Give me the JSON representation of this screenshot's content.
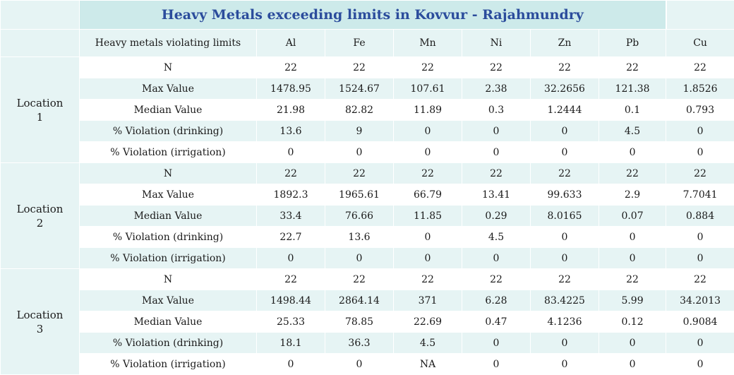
{
  "title": "Heavy Metals exceeding limits in Kovvur - Rajahmundry",
  "header": {
    "label": "Heavy metals violating limits",
    "metals": [
      "Al",
      "Fe",
      "Mn",
      "Ni",
      "Zn",
      "Pb",
      "Cu"
    ]
  },
  "locations": [
    {
      "name_line1": "Location",
      "name_line2": "1",
      "rows": [
        {
          "label": "N",
          "values": [
            "22",
            "22",
            "22",
            "22",
            "22",
            "22",
            "22"
          ]
        },
        {
          "label": "Max Value",
          "values": [
            "1478.95",
            "1524.67",
            "107.61",
            "2.38",
            "32.2656",
            "121.38",
            "1.8526"
          ]
        },
        {
          "label": "Median Value",
          "values": [
            "21.98",
            "82.82",
            "11.89",
            "0.3",
            "1.2444",
            "0.1",
            "0.793"
          ]
        },
        {
          "label": "% Violation (drinking)",
          "values": [
            "13.6",
            "9",
            "0",
            "0",
            "0",
            "4.5",
            "0"
          ]
        },
        {
          "label": "% Violation (irrigation)",
          "values": [
            "0",
            "0",
            "0",
            "0",
            "0",
            "0",
            "0"
          ]
        }
      ]
    },
    {
      "name_line1": "Location",
      "name_line2": "2",
      "rows": [
        {
          "label": "N",
          "values": [
            "22",
            "22",
            "22",
            "22",
            "22",
            "22",
            "22"
          ]
        },
        {
          "label": "Max Value",
          "values": [
            "1892.3",
            "1965.61",
            "66.79",
            "13.41",
            "99.633",
            "2.9",
            "7.7041"
          ]
        },
        {
          "label": "Median Value",
          "values": [
            "33.4",
            "76.66",
            "11.85",
            "0.29",
            "8.0165",
            "0.07",
            "0.884"
          ]
        },
        {
          "label": "% Violation (drinking)",
          "values": [
            "22.7",
            "13.6",
            "0",
            "4.5",
            "0",
            "0",
            "0"
          ]
        },
        {
          "label": "% Violation (irrigation)",
          "values": [
            "0",
            "0",
            "0",
            "0",
            "0",
            "0",
            "0"
          ]
        }
      ]
    },
    {
      "name_line1": "Location",
      "name_line2": "3",
      "rows": [
        {
          "label": "N",
          "values": [
            "22",
            "22",
            "22",
            "22",
            "22",
            "22",
            "22"
          ]
        },
        {
          "label": "Max Value",
          "values": [
            "1498.44",
            "2864.14",
            "371",
            "6.28",
            "83.4225",
            "5.99",
            "34.2013"
          ]
        },
        {
          "label": "Median Value",
          "values": [
            "25.33",
            "78.85",
            "22.69",
            "0.47",
            "4.1236",
            "0.12",
            "0.9084"
          ]
        },
        {
          "label": "% Violation (drinking)",
          "values": [
            "18.1",
            "36.3",
            "4.5",
            "0",
            "0",
            "0",
            "0"
          ]
        },
        {
          "label": "% Violation (irrigation)",
          "values": [
            "0",
            "0",
            "NA",
            "0",
            "0",
            "0",
            "0"
          ]
        }
      ]
    }
  ],
  "colors": {
    "title_text": "#2b4c9c",
    "title_bg": "#cdeaea",
    "shade_bg": "#e6f4f4",
    "plain_bg": "#ffffff"
  }
}
